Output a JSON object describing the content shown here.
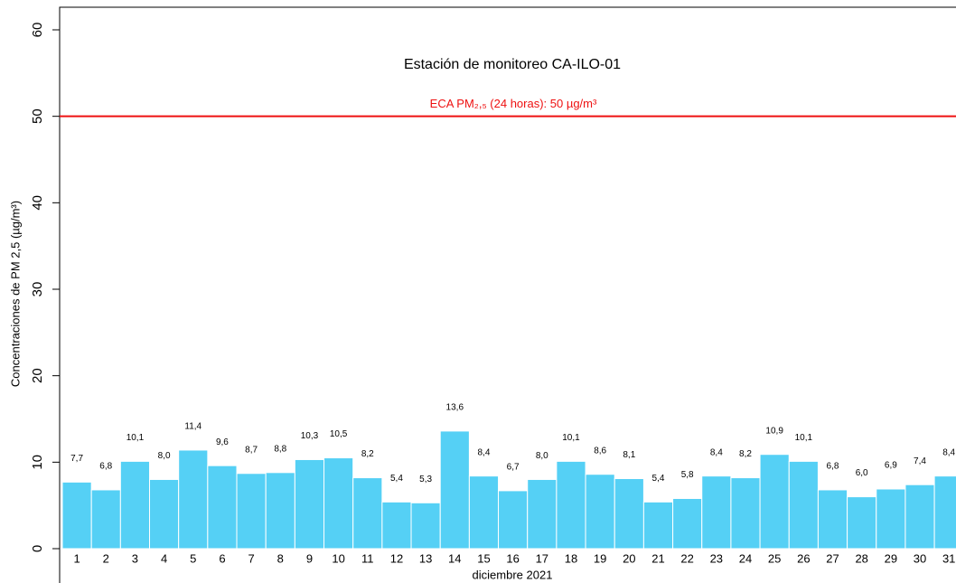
{
  "chart_data": {
    "type": "bar",
    "title": "Estación de monitoreo  CA-ILO-01",
    "x_label": "diciembre 2021",
    "y_label": "Concentraciones de PM 2,5 (µg/m³)",
    "categories": [
      "1",
      "2",
      "3",
      "4",
      "5",
      "6",
      "7",
      "8",
      "9",
      "10",
      "11",
      "12",
      "13",
      "14",
      "15",
      "16",
      "17",
      "18",
      "19",
      "20",
      "21",
      "22",
      "23",
      "24",
      "25",
      "26",
      "27",
      "28",
      "29",
      "30",
      "31"
    ],
    "values": [
      7.7,
      6.8,
      10.1,
      8.0,
      11.4,
      9.6,
      8.7,
      8.8,
      10.3,
      10.5,
      8.2,
      5.4,
      5.3,
      13.6,
      8.4,
      6.7,
      8.0,
      10.1,
      8.6,
      8.1,
      5.4,
      5.8,
      8.4,
      8.2,
      10.9,
      10.1,
      6.8,
      6.0,
      6.9,
      7.4,
      8.4
    ],
    "value_labels": [
      "7,7",
      "6,8",
      "10,1",
      "8,0",
      "11,4",
      "9,6",
      "8,7",
      "8,8",
      "10,3",
      "10,5",
      "8,2",
      "5,4",
      "5,3",
      "13,6",
      "8,4",
      "6,7",
      "8,0",
      "10,1",
      "8,6",
      "8,1",
      "5,4",
      "5,8",
      "8,4",
      "8,2",
      "10,9",
      "10,1",
      "6,8",
      "6,0",
      "6,9",
      "7,4",
      "8,4"
    ],
    "color": "#55d0f5",
    "ylim": [
      0,
      60
    ],
    "yticks": [
      0,
      10,
      20,
      30,
      40,
      50,
      60
    ],
    "reference_line": {
      "value": 50,
      "label": "ECA PM₂,₅ (24 horas): 50 µg/m³",
      "color": "#ee1111"
    }
  }
}
